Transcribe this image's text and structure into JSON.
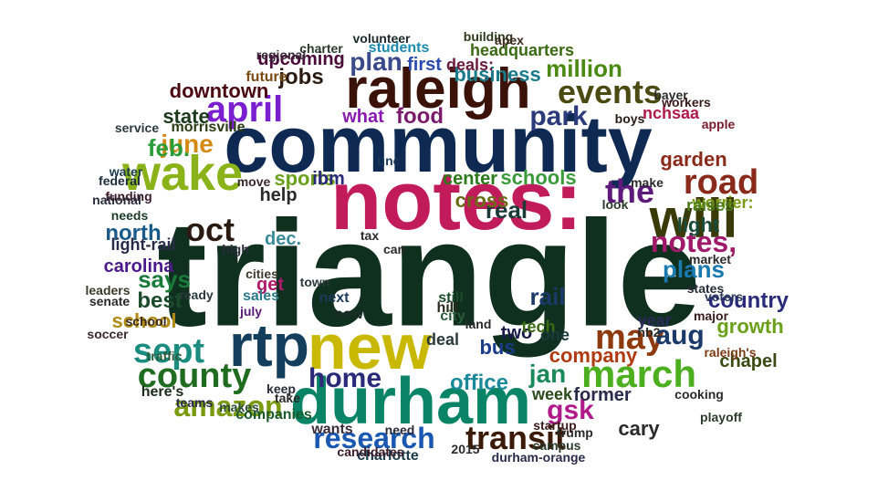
{
  "words": [
    {
      "text": "triangle",
      "color": "#10301f",
      "rotate": false
    },
    {
      "text": "community",
      "color": "#0e2a52",
      "rotate": false
    },
    {
      "text": "notes:",
      "color": "#c21b5c",
      "rotate": false
    },
    {
      "text": "raleigh",
      "color": "#3b1208",
      "rotate": false
    },
    {
      "text": "durham",
      "color": "#0a8466",
      "rotate": false
    },
    {
      "text": "new",
      "color": "#c9b800",
      "rotate": false
    },
    {
      "text": "wake",
      "color": "#8ab31a",
      "rotate": false
    },
    {
      "text": "will",
      "color": "#3a3a08",
      "rotate": false
    },
    {
      "text": "rtp",
      "color": "#143f5c",
      "rotate": false
    },
    {
      "text": "march",
      "color": "#4caf20",
      "rotate": false
    },
    {
      "text": "transit",
      "color": "#3c1a08",
      "rotate": false
    },
    {
      "text": "research",
      "color": "#1a57b0",
      "rotate": false
    },
    {
      "text": "may",
      "color": "#8e3a0f",
      "rotate": false
    },
    {
      "text": "county",
      "color": "#1f6b1f",
      "rotate": false
    },
    {
      "text": "sept",
      "color": "#1a8c80",
      "rotate": false
    },
    {
      "text": "april",
      "color": "#7a1fd0",
      "rotate": false
    },
    {
      "text": "events",
      "color": "#4a4a12",
      "rotate": false
    },
    {
      "text": "oct",
      "color": "#2a1a12",
      "rotate": false
    },
    {
      "text": "the",
      "color": "#5d1a7a",
      "rotate": false
    },
    {
      "text": "road",
      "color": "#8a2a1a",
      "rotate": false
    },
    {
      "text": "june",
      "color": "#d48a12",
      "rotate": false
    },
    {
      "text": "feb.",
      "color": "#2a9c3a",
      "rotate": false
    },
    {
      "text": "amazon",
      "color": "#7a9a10",
      "rotate": false
    },
    {
      "text": "park",
      "color": "#2a3a7a",
      "rotate": false
    },
    {
      "text": "jobs",
      "color": "#2a1a10",
      "rotate": false
    },
    {
      "text": "million",
      "color": "#4a8a12",
      "rotate": false
    },
    {
      "text": "business",
      "color": "#1a7a8a",
      "rotate": false
    },
    {
      "text": "notes,",
      "color": "#a01a6a",
      "rotate": false
    },
    {
      "text": "aug",
      "color": "#1a3a6a",
      "rotate": false
    },
    {
      "text": "gsk",
      "color": "#b01a8a",
      "rotate": false
    },
    {
      "text": "jan",
      "color": "#1a8a5a",
      "rotate": false
    },
    {
      "text": "home",
      "color": "#2a2a7a",
      "rotate": false
    },
    {
      "text": "food",
      "color": "#7a1a6a",
      "rotate": false
    },
    {
      "text": "plan",
      "color": "#3a4a8a",
      "rotate": false
    },
    {
      "text": "says",
      "color": "#1a7a3a",
      "rotate": false
    },
    {
      "text": "north",
      "color": "#1a5a8a",
      "rotate": false
    },
    {
      "text": "rail",
      "color": "#1a3a6a",
      "rotate": false
    },
    {
      "text": "plans",
      "color": "#1a7ab0",
      "rotate": false
    },
    {
      "text": "downtown",
      "color": "#4a0a12",
      "rotate": false
    },
    {
      "text": "school",
      "color": "#b08a12",
      "rotate": false
    },
    {
      "text": "company",
      "color": "#b03a12",
      "rotate": false
    },
    {
      "text": "cary",
      "color": "#2a2a2a",
      "rotate": false
    },
    {
      "text": "office",
      "color": "#1a8a9a",
      "rotate": false
    },
    {
      "text": "best",
      "color": "#1a4a2a",
      "rotate": false
    },
    {
      "text": "country",
      "color": "#2a2a7a",
      "rotate": false
    },
    {
      "text": "state",
      "color": "#1a3a1a",
      "rotate": false
    },
    {
      "text": "what",
      "color": "#8a1ab0",
      "rotate": false
    },
    {
      "text": "sports",
      "color": "#6aa01a",
      "rotate": false
    },
    {
      "text": "carolina",
      "color": "#4a1a8a",
      "rotate": false
    },
    {
      "text": "garden",
      "color": "#8a2a1a",
      "rotate": false
    },
    {
      "text": "light",
      "color": "#1a4a3a",
      "rotate": false
    },
    {
      "text": "first",
      "color": "#2a4ab0",
      "rotate": false
    },
    {
      "text": "center",
      "color": "#2a7a1a",
      "rotate": false
    },
    {
      "text": "real",
      "color": "#1a3a3a",
      "rotate": false
    },
    {
      "text": "cross",
      "color": "#6a6a12",
      "rotate": false
    },
    {
      "text": "schools",
      "color": "#3a9a3a",
      "rotate": false
    },
    {
      "text": "former",
      "color": "#2a2a4a",
      "rotate": false
    },
    {
      "text": "growth",
      "color": "#6aa01a",
      "rotate": false
    },
    {
      "text": "chapel",
      "color": "#3a4a12",
      "rotate": false
    },
    {
      "text": "worrier:",
      "color": "#7a9a12",
      "rotate": false
    },
    {
      "text": "raises",
      "color": "#4a7a1a",
      "rotate": false
    },
    {
      "text": "get",
      "color": "#b01a6a",
      "rotate": false
    },
    {
      "text": "help",
      "color": "#2a2a2a",
      "rotate": false
    },
    {
      "text": "upcoming",
      "color": "#4a0a3a",
      "rotate": false
    },
    {
      "text": "headquarters",
      "color": "#3a6a12",
      "rotate": false
    },
    {
      "text": "deals:",
      "color": "#6a1a3a",
      "rotate": false
    },
    {
      "text": "bus",
      "color": "#1a3a8a",
      "rotate": false
    },
    {
      "text": "nchsaa",
      "color": "#b01a4a",
      "rotate": false
    },
    {
      "text": "ibm",
      "color": "#2a2a7a",
      "rotate": false
    },
    {
      "text": "dec.",
      "color": "#3a8a9a",
      "rotate": false
    },
    {
      "text": "two",
      "color": "#1a1a4a",
      "rotate": false
    },
    {
      "text": "tech",
      "color": "#3a6a12",
      "rotate": false
    },
    {
      "text": "one",
      "color": "#1a3a3a",
      "rotate": false
    },
    {
      "text": "week",
      "color": "#2a4a1a",
      "rotate": false
    },
    {
      "text": "sales",
      "color": "#2a7a8a",
      "rotate": false
    },
    {
      "text": "july",
      "color": "#5a1a7a",
      "rotate": false
    },
    {
      "text": "light-rail",
      "color": "#2a2a4a",
      "rotate": false
    },
    {
      "text": "here's",
      "color": "#1a2a1a",
      "rotate": false
    },
    {
      "text": "students",
      "color": "#1a8ab0",
      "rotate": false
    },
    {
      "text": "future",
      "color": "#7a4a12",
      "rotate": false
    },
    {
      "text": "durham-orange",
      "color": "#2a2a4a",
      "rotate": false
    },
    {
      "text": "startup",
      "color": "#3a1a1a",
      "rotate": false
    },
    {
      "text": "charlotte",
      "color": "#1a3a4a",
      "rotate": false
    },
    {
      "text": "companies",
      "color": "#1a5a2a",
      "rotate": false
    },
    {
      "text": "morrisville",
      "color": "#2a3a12",
      "rotate": false
    },
    {
      "text": "federal",
      "color": "#1a2a3a",
      "rotate": false
    },
    {
      "text": "needs",
      "color": "#1a3a2a",
      "rotate": false
    },
    {
      "text": "year",
      "color": "#2a2a5a",
      "rotate": false
    },
    {
      "text": "major",
      "color": "#3a1a1a",
      "rotate": false
    },
    {
      "text": "trump",
      "color": "#2a2a2a",
      "rotate": false
    },
    {
      "text": "boys",
      "color": "#2a1a1a",
      "rotate": false
    },
    {
      "text": "apple",
      "color": "#7a1a2a",
      "rotate": false
    },
    {
      "text": "volunteer",
      "color": "#1a2a2a",
      "rotate": false
    },
    {
      "text": "building",
      "color": "#2a3a1a",
      "rotate": false
    },
    {
      "text": "still",
      "color": "#1a4a2a",
      "rotate": false
    },
    {
      "text": "city",
      "color": "#2a5a3a",
      "rotate": false
    },
    {
      "text": "hill",
      "color": "#2a2a1a",
      "rotate": false
    },
    {
      "text": "deal",
      "color": "#2a3a3a",
      "rotate": false
    },
    {
      "text": "now",
      "color": "#1a2a2a",
      "rotate": false
    },
    {
      "text": "next",
      "color": "#1a3a5a",
      "rotate": false
    },
    {
      "text": "cooking",
      "color": "#2a2a2a",
      "rotate": false
    },
    {
      "text": "campus",
      "color": "#2a3a2a",
      "rotate": false
    },
    {
      "text": "teams",
      "color": "#2a2a4a",
      "rotate": false
    },
    {
      "text": "makes",
      "color": "#2a4a3a",
      "rotate": false
    },
    {
      "text": "wants",
      "color": "#3a2a3a",
      "rotate": false
    },
    {
      "text": "senate",
      "color": "#2a2a2a",
      "rotate": false
    },
    {
      "text": "leaders",
      "color": "#3a3a2a",
      "rotate": false
    },
    {
      "text": "water",
      "color": "#1a3a4a",
      "rotate": false
    },
    {
      "text": "funding",
      "color": "#3a1a2a",
      "rotate": false
    },
    {
      "text": "service",
      "color": "#2a3a3a",
      "rotate": false
    },
    {
      "text": "traffic",
      "color": "#2a5a3a",
      "rotate": false
    },
    {
      "text": "school",
      "color": "#3a2a1a",
      "rotate": false
    },
    {
      "text": "hb2",
      "color": "#2a2a2a",
      "rotate": false
    },
    {
      "text": "voters",
      "color": "#2a3a5a",
      "rotate": false
    },
    {
      "text": "bayer",
      "color": "#2a2a2a",
      "rotate": false
    },
    {
      "text": "charter",
      "color": "#2a3a2a",
      "rotate": false
    },
    {
      "text": "regional",
      "color": "#3a2a3a",
      "rotate": false
    },
    {
      "text": "keep",
      "color": "#2a2a3a",
      "rotate": false
    },
    {
      "text": "make",
      "color": "#2a2a2a",
      "rotate": false
    },
    {
      "text": "look",
      "color": "#2a3a2a",
      "rotate": false
    },
    {
      "text": "national",
      "color": "#2a2a3a",
      "rotate": false
    },
    {
      "text": "soccer",
      "color": "#3a2a2a",
      "rotate": false
    },
    {
      "text": "2015",
      "color": "#2a2a2a",
      "rotate": false
    },
    {
      "text": "take",
      "color": "#2a2a2a",
      "rotate": false
    },
    {
      "text": "town",
      "color": "#2a3a3a",
      "rotate": false
    },
    {
      "text": "high",
      "color": "#2a2a3a",
      "rotate": false
    },
    {
      "text": "move",
      "color": "#3a2a2a",
      "rotate": false
    },
    {
      "text": "unc",
      "color": "#1a3a5a",
      "rotate": false
    },
    {
      "text": "tax",
      "color": "#2a2a2a",
      "rotate": false
    },
    {
      "text": "can",
      "color": "#2a2a2a",
      "rotate": false
    },
    {
      "text": "states",
      "color": "#2a2a3a",
      "rotate": false
    },
    {
      "text": "playoff",
      "color": "#2a3a2a",
      "rotate": false
    },
    {
      "text": "raleigh's",
      "color": "#7a3a12",
      "rotate": false
    },
    {
      "text": "market",
      "color": "#2a2a2a",
      "rotate": false
    },
    {
      "text": "workers",
      "color": "#3a1a1a",
      "rotate": false
    },
    {
      "text": "apex",
      "color": "#3a2a1a",
      "rotate": false
    },
    {
      "text": "cities",
      "color": "#3a3a2a",
      "rotate": false
    },
    {
      "text": "ready",
      "color": "#2a3a3a",
      "rotate": false
    },
    {
      "text": "land",
      "color": "#2a2a2a",
      "rotate": false
    },
    {
      "text": "need",
      "color": "#2a2a3a",
      "rotate": false
    },
    {
      "text": "candidates",
      "color": "#3a1a2a",
      "rotate": false
    }
  ]
}
